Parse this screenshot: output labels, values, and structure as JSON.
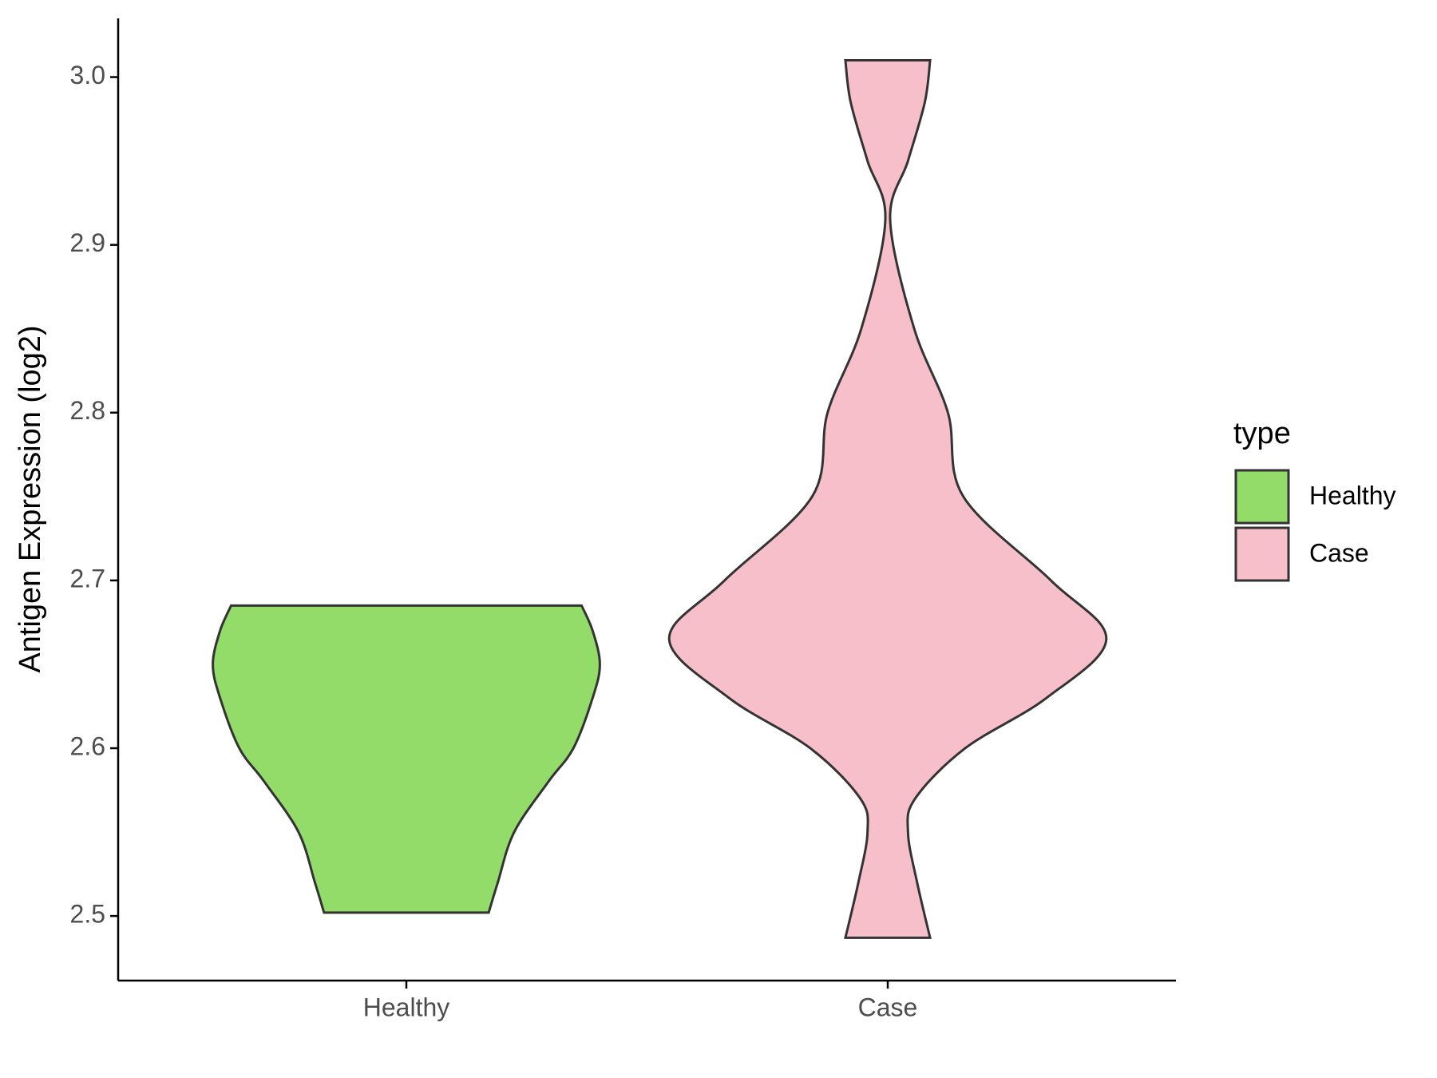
{
  "chart_data": {
    "type": "violin",
    "ylabel": "Antigen Expression (log2)",
    "categories": [
      "Healthy",
      "Case"
    ],
    "legend_title": "type",
    "legend_position": "right",
    "grid": false,
    "ylim": [
      2.4615,
      3.035
    ],
    "yticks": [
      2.5,
      2.6,
      2.7,
      2.8,
      2.9,
      {
        "value": 3,
        "label": "3.0"
      }
    ],
    "series": [
      {
        "name": "Healthy",
        "color": "#93dc6a",
        "y": [
          2.502,
          2.52,
          2.55,
          2.58,
          2.6,
          2.63,
          2.65,
          2.67,
          2.685
        ],
        "density": [
          0.171,
          0.19,
          0.224,
          0.295,
          0.347,
          0.387,
          0.402,
          0.387,
          0.364
        ]
      },
      {
        "name": "Case",
        "color": "#f7bfca",
        "y": [
          2.487,
          2.52,
          2.55,
          2.57,
          2.6,
          2.63,
          2.665,
          2.7,
          2.75,
          2.8,
          2.85,
          2.915,
          2.95,
          2.985,
          3.01
        ],
        "density": [
          0.088,
          0.061,
          0.042,
          0.057,
          0.161,
          0.33,
          0.454,
          0.339,
          0.157,
          0.125,
          0.055,
          0.005,
          0.042,
          0.077,
          0.088
        ]
      }
    ]
  }
}
